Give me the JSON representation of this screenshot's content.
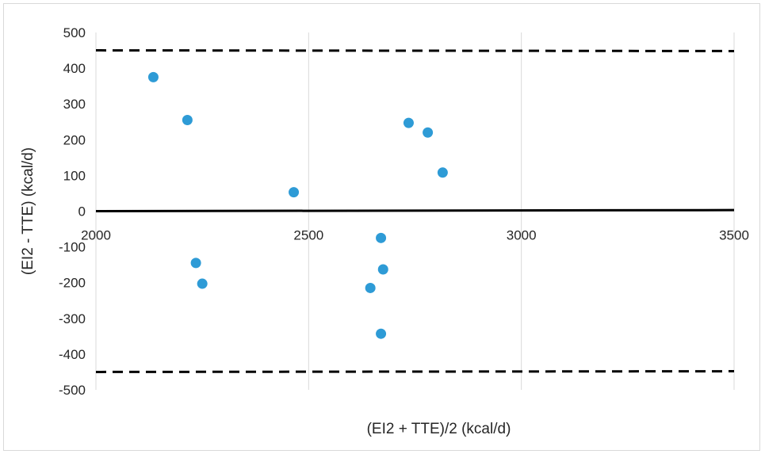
{
  "chart_data": {
    "type": "scatter",
    "title": "",
    "xlabel": "(EI2 + TTE)/2 (kcal/d)",
    "ylabel": "(EI2 - TTE) (kcal/d)",
    "xlim": [
      2000,
      3500
    ],
    "ylim": [
      -500,
      500
    ],
    "x_ticks": [
      2000,
      2500,
      3000,
      3500
    ],
    "y_ticks": [
      -500,
      -400,
      -300,
      -200,
      -100,
      0,
      100,
      200,
      300,
      400,
      500
    ],
    "x_tick_labels": [
      "2000",
      "2500",
      "3000",
      "3500"
    ],
    "y_tick_labels": [
      "-500",
      "-400",
      "-300",
      "-200",
      "-100",
      "0",
      "100",
      "200",
      "300",
      "400",
      "500"
    ],
    "grid": "vertical",
    "legend": "none",
    "series": [
      {
        "color": "#2e9bd6",
        "points": [
          {
            "x": 2135,
            "y": 375
          },
          {
            "x": 2215,
            "y": 255
          },
          {
            "x": 2235,
            "y": -145
          },
          {
            "x": 2250,
            "y": -203
          },
          {
            "x": 2465,
            "y": 53
          },
          {
            "x": 2645,
            "y": -215
          },
          {
            "x": 2670,
            "y": -75
          },
          {
            "x": 2670,
            "y": -343
          },
          {
            "x": 2675,
            "y": -163
          },
          {
            "x": 2735,
            "y": 247
          },
          {
            "x": 2780,
            "y": 220
          },
          {
            "x": 2815,
            "y": 108
          }
        ]
      }
    ],
    "reference_lines": [
      {
        "style": "dashed",
        "color": "#000000",
        "y_start": 450,
        "y_end": 448
      },
      {
        "style": "solid",
        "color": "#000000",
        "y_start": 0,
        "y_end": 3
      },
      {
        "style": "dashed",
        "color": "#000000",
        "y_start": -450,
        "y_end": -448
      }
    ]
  }
}
